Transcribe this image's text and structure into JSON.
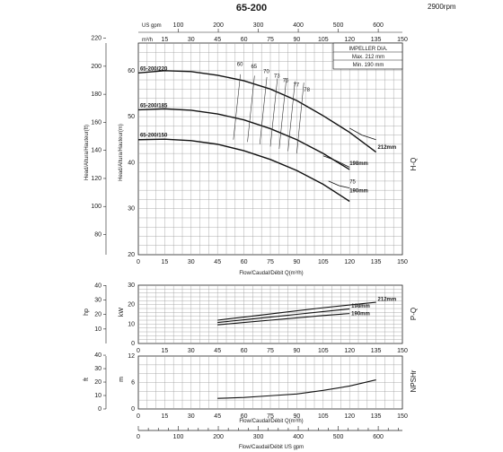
{
  "header": {
    "model": "65-200",
    "speed": "2900rpm",
    "top_unit_gpm": "US gpm",
    "top_unit_m3h": "m³/h"
  },
  "legend": {
    "title": "IMPELLER DIA.",
    "max": "Max.  212  mm",
    "min": "Min.   190  mm"
  },
  "chart_data": [
    {
      "type": "line",
      "name": "H-Q",
      "title": "H-Q",
      "xlabel": "Flow/Caudal/Débit Q(m³/h)",
      "ylabel_m": "Head/Altura/Hauteur(m)",
      "ylabel_ft": "Head/Altura/Hauteur(ft)",
      "x_ticks": [
        "0",
        "15",
        "30",
        "45",
        "60",
        "75",
        "90",
        "105",
        "120",
        "135",
        "150"
      ],
      "x_top_m3h_ticks": [
        "0",
        "15",
        "30",
        "45",
        "60",
        "75",
        "90",
        "105",
        "120",
        "135",
        "150"
      ],
      "x_top_gpm_ticks": [
        "0",
        "100",
        "200",
        "300",
        "400",
        "500",
        "600"
      ],
      "y_ticks_m": [
        "20",
        "30",
        "40",
        "50",
        "60"
      ],
      "y_ticks_ft": [
        "80",
        "100",
        "120",
        "140",
        "160",
        "180",
        "200",
        "220"
      ],
      "xlim": [
        0,
        150
      ],
      "ylim": [
        20,
        66
      ],
      "grid": true,
      "series": [
        {
          "name": "65-200/220",
          "x": [
            0,
            15,
            30,
            45,
            60,
            75,
            90,
            105,
            120,
            135
          ],
          "y": [
            59.5,
            60,
            59.8,
            59,
            57.8,
            56,
            53.5,
            50.2,
            46.6,
            42.3
          ]
        },
        {
          "name": "65-200/185",
          "x": [
            0,
            15,
            30,
            45,
            60,
            75,
            90,
            105,
            120
          ],
          "y": [
            51.5,
            51.7,
            51.4,
            50.6,
            49.3,
            47.4,
            45,
            42,
            38.5
          ]
        },
        {
          "name": "65-200/150",
          "x": [
            0,
            15,
            30,
            45,
            60,
            75,
            90,
            105,
            120
          ],
          "y": [
            45,
            45.1,
            44.8,
            44,
            42.6,
            40.7,
            38.3,
            35.3,
            31.6
          ]
        },
        {
          "name": "212mm",
          "x": [
            120,
            127,
            135
          ],
          "y": [
            47.5,
            46,
            45
          ]
        },
        {
          "name": "198mm",
          "x": [
            105,
            112,
            120
          ],
          "y": [
            41.5,
            40.5,
            39
          ]
        },
        {
          "name": "190mm",
          "x": [
            108,
            114,
            120
          ],
          "y": [
            36,
            35,
            34.5
          ]
        }
      ],
      "efficiency_labels": [
        "60",
        "65",
        "70",
        "73",
        "75",
        "77",
        "78",
        "75"
      ],
      "curve_end_labels": [
        "212mm",
        "198mm",
        "190mm"
      ]
    },
    {
      "type": "line",
      "name": "P-Q",
      "title": "P-Q",
      "ylabel_kw": "kW",
      "ylabel_hp": "hp",
      "y_ticks_kw": [
        "0",
        "10",
        "20",
        "30"
      ],
      "y_ticks_hp": [
        "10",
        "20",
        "30",
        "40"
      ],
      "x_ticks": [
        "0",
        "15",
        "30",
        "45",
        "60",
        "75",
        "90",
        "105",
        "120",
        "135",
        "150"
      ],
      "xlim": [
        0,
        150
      ],
      "ylim": [
        0,
        30
      ],
      "grid": true,
      "series": [
        {
          "name": "212mm",
          "x": [
            45,
            60,
            75,
            90,
            105,
            120,
            135
          ],
          "y": [
            12,
            13.6,
            15.2,
            16.8,
            18.4,
            19.8,
            21.2
          ]
        },
        {
          "name": "198mm",
          "x": [
            45,
            60,
            75,
            90,
            105,
            120
          ],
          "y": [
            10.8,
            12.2,
            13.6,
            15,
            16.4,
            17.8
          ]
        },
        {
          "name": "190mm",
          "x": [
            45,
            60,
            75,
            90,
            105,
            120
          ],
          "y": [
            9.6,
            10.8,
            12,
            13.2,
            14.4,
            15.4
          ]
        }
      ],
      "curve_end_labels": [
        "212mm",
        "198mm",
        "190mm"
      ]
    },
    {
      "type": "line",
      "name": "NPSHr",
      "title": "NPSHr",
      "xlabel": "Flow/Caudal/Débit Q(m³/h)",
      "ylabel_m": "m",
      "ylabel_ft": "ft",
      "y_ticks_m": [
        "0",
        "6",
        "12"
      ],
      "y_ticks_ft": [
        "0",
        "10",
        "20",
        "30",
        "40"
      ],
      "x_ticks": [
        "0",
        "15",
        "30",
        "45",
        "60",
        "75",
        "90",
        "105",
        "120",
        "135",
        "150"
      ],
      "xlim": [
        0,
        150
      ],
      "ylim": [
        0,
        12
      ],
      "grid": true,
      "series": [
        {
          "name": "NPSHr",
          "x": [
            45,
            60,
            75,
            90,
            105,
            120,
            135
          ],
          "y": [
            2.4,
            2.6,
            3,
            3.4,
            4.2,
            5.2,
            6.6
          ]
        }
      ]
    }
  ],
  "bottom_axis": {
    "label": "Flow/Caudal/Débit  US gpm",
    "ticks": [
      "0",
      "100",
      "200",
      "300",
      "400",
      "500",
      "600"
    ]
  }
}
